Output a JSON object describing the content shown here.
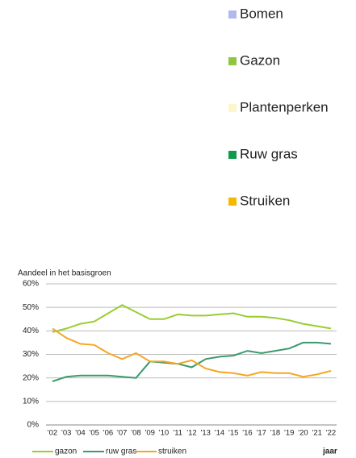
{
  "top_legend": [
    {
      "name": "Bomen",
      "color": "#b4b9ec"
    },
    {
      "name": "Gazon",
      "color": "#8dc63f"
    },
    {
      "name": "Plantenperken",
      "color": "#fbf7c8"
    },
    {
      "name": "Ruw gras",
      "color": "#0f9a4a"
    },
    {
      "name": "Struiken",
      "color": "#f5b800"
    }
  ],
  "chart_data": {
    "type": "line",
    "y_label": "Aandeel in het basisgroen",
    "x_label": "jaar",
    "categories": [
      "'02",
      "'03",
      "'04",
      "'05",
      "'06",
      "'07",
      "'08",
      "'09",
      "'10",
      "'11",
      "'12",
      "'13",
      "'14",
      "'15",
      "'16",
      "'17",
      "'18",
      "'19",
      "'20",
      "'21",
      "'22"
    ],
    "series": [
      {
        "name": "gazon",
        "color": "#9acd32",
        "values": [
          39.5,
          41,
          43,
          44,
          47.5,
          51,
          48,
          45,
          45,
          47,
          46.5,
          46.5,
          47,
          47.5,
          46,
          46,
          45.5,
          44.5,
          43,
          42,
          41
        ]
      },
      {
        "name": "ruw gras",
        "color": "#3a9a6e",
        "values": [
          18.5,
          20.5,
          21,
          21,
          21,
          20.5,
          20,
          27,
          26.5,
          26,
          24.5,
          28,
          29,
          29.5,
          31.5,
          30.5,
          31.5,
          32.5,
          35,
          35,
          34.5
        ]
      },
      {
        "name": "struiken",
        "color": "#f5a623",
        "values": [
          41,
          37,
          34.5,
          34,
          30.5,
          28,
          30.5,
          27,
          27,
          26,
          27.5,
          24,
          22.5,
          22,
          21,
          22.5,
          22,
          22,
          20.5,
          21.5,
          23
        ]
      }
    ],
    "ylim": [
      0,
      60
    ],
    "yticks": [
      {
        "value": 0,
        "label": "0%"
      },
      {
        "value": 10,
        "label": "10%"
      },
      {
        "value": 20,
        "label": "20%"
      },
      {
        "value": 30,
        "label": "30%"
      },
      {
        "value": 40,
        "label": "40%"
      },
      {
        "value": 50,
        "label": "50%"
      },
      {
        "value": 60,
        "label": "60%"
      }
    ],
    "grid": true
  }
}
